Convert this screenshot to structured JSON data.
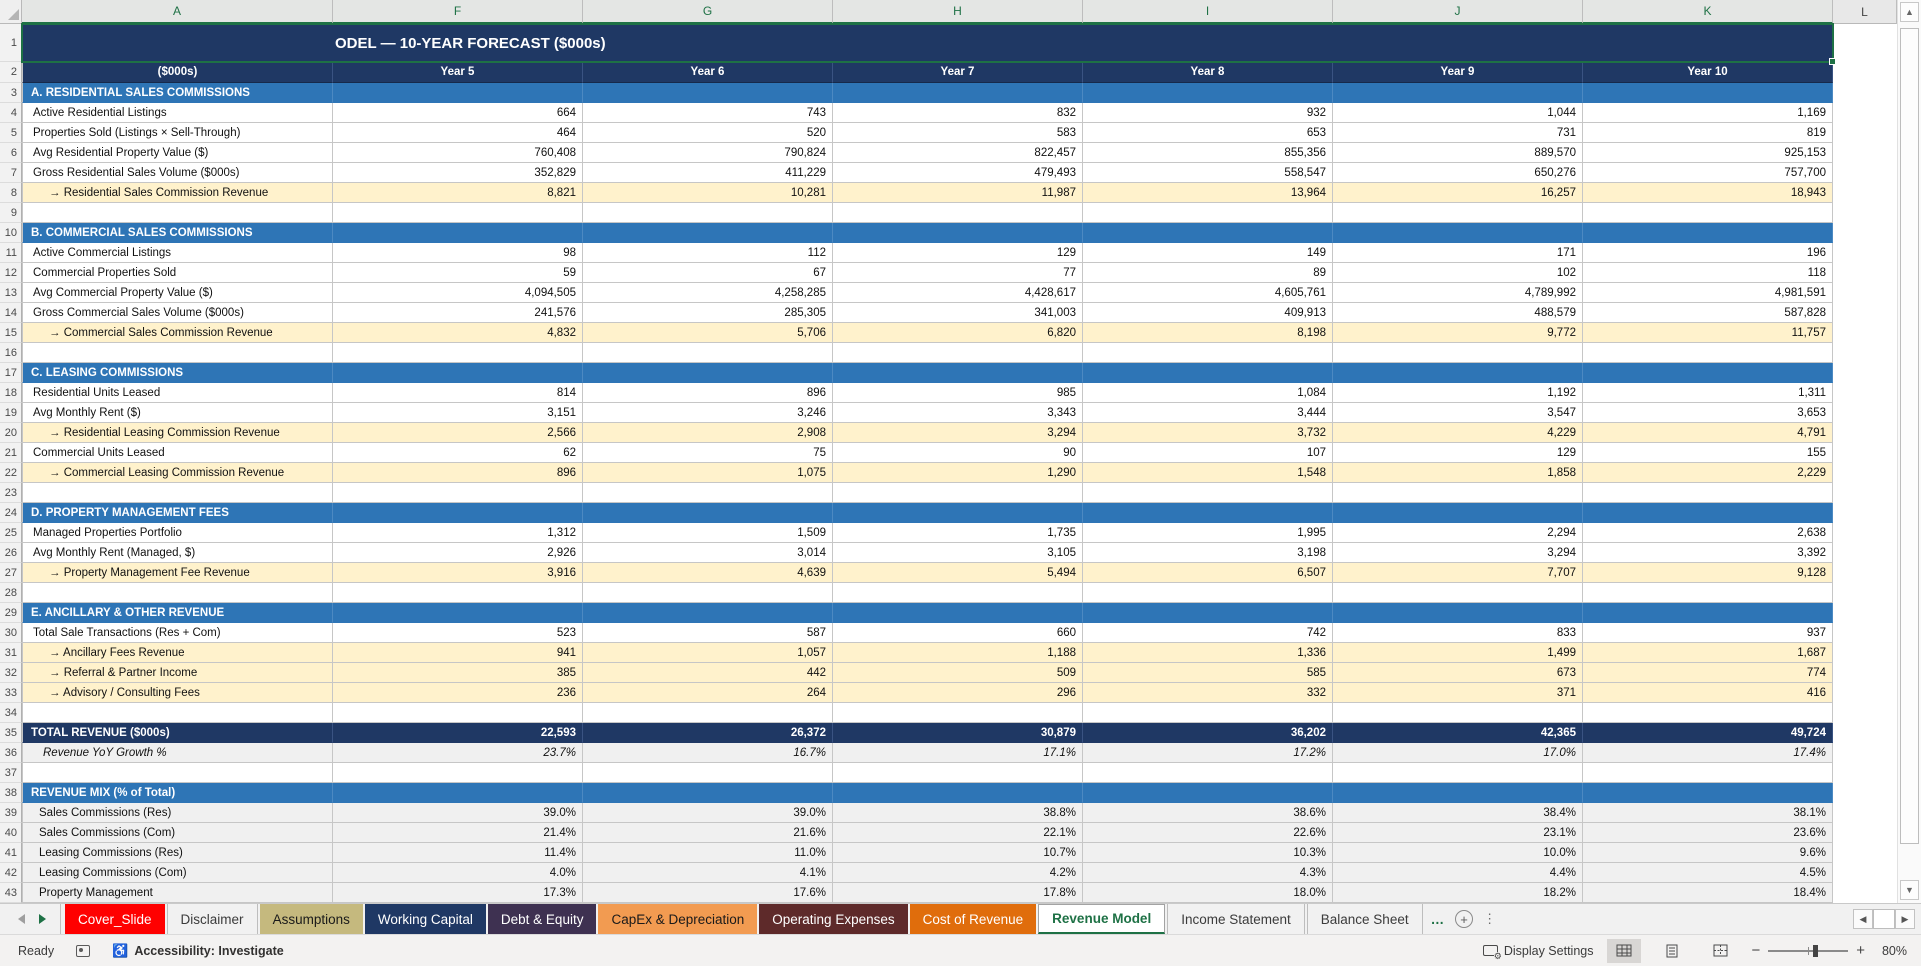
{
  "grid": {
    "column_letters": [
      {
        "letter": "A",
        "selected": true
      },
      {
        "letter": "F",
        "selected": true
      },
      {
        "letter": "G",
        "selected": true
      },
      {
        "letter": "H",
        "selected": true
      },
      {
        "letter": "I",
        "selected": true
      },
      {
        "letter": "J",
        "selected": true
      },
      {
        "letter": "K",
        "selected": true
      },
      {
        "letter": "L",
        "selected": false
      }
    ],
    "row1": {
      "number": "1",
      "title": "ODEL — 10-YEAR FORECAST ($000s)"
    },
    "row2": {
      "number": "2",
      "label": "($000s)",
      "years": [
        "Year 5",
        "Year 6",
        "Year 7",
        "Year 8",
        "Year 9",
        "Year 10"
      ]
    },
    "rows": [
      {
        "n": "3",
        "type": "section",
        "label": "A. RESIDENTIAL SALES COMMISSIONS",
        "values": [
          "",
          "",
          "",
          "",
          "",
          ""
        ]
      },
      {
        "n": "4",
        "type": "data",
        "label": "Active Residential Listings",
        "values": [
          "664",
          "743",
          "832",
          "932",
          "1,044",
          "1,169"
        ]
      },
      {
        "n": "5",
        "type": "data",
        "label": "Properties Sold (Listings × Sell-Through)",
        "values": [
          "464",
          "520",
          "583",
          "653",
          "731",
          "819"
        ]
      },
      {
        "n": "6",
        "type": "data",
        "label": "Avg Residential Property Value ($)",
        "values": [
          "760,408",
          "790,824",
          "822,457",
          "855,356",
          "889,570",
          "925,153"
        ]
      },
      {
        "n": "7",
        "type": "data",
        "label": "Gross Residential Sales Volume ($000s)",
        "values": [
          "352,829",
          "411,229",
          "479,493",
          "558,547",
          "650,276",
          "757,700"
        ]
      },
      {
        "n": "8",
        "type": "calc",
        "label": "→ Residential Sales Commission Revenue",
        "values": [
          "8,821",
          "10,281",
          "11,987",
          "13,964",
          "16,257",
          "18,943"
        ]
      },
      {
        "n": "9",
        "type": "data",
        "label": "",
        "values": [
          "",
          "",
          "",
          "",
          "",
          ""
        ]
      },
      {
        "n": "10",
        "type": "section",
        "label": "B. COMMERCIAL SALES COMMISSIONS",
        "values": [
          "",
          "",
          "",
          "",
          "",
          ""
        ]
      },
      {
        "n": "11",
        "type": "data",
        "label": "Active Commercial Listings",
        "values": [
          "98",
          "112",
          "129",
          "149",
          "171",
          "196"
        ]
      },
      {
        "n": "12",
        "type": "data",
        "label": "Commercial Properties Sold",
        "values": [
          "59",
          "67",
          "77",
          "89",
          "102",
          "118"
        ]
      },
      {
        "n": "13",
        "type": "data",
        "label": "Avg Commercial Property Value ($)",
        "values": [
          "4,094,505",
          "4,258,285",
          "4,428,617",
          "4,605,761",
          "4,789,992",
          "4,981,591"
        ]
      },
      {
        "n": "14",
        "type": "data",
        "label": "Gross Commercial Sales Volume ($000s)",
        "values": [
          "241,576",
          "285,305",
          "341,003",
          "409,913",
          "488,579",
          "587,828"
        ]
      },
      {
        "n": "15",
        "type": "calc",
        "label": "→ Commercial Sales Commission Revenue",
        "values": [
          "4,832",
          "5,706",
          "6,820",
          "8,198",
          "9,772",
          "11,757"
        ]
      },
      {
        "n": "16",
        "type": "data",
        "label": "",
        "values": [
          "",
          "",
          "",
          "",
          "",
          ""
        ]
      },
      {
        "n": "17",
        "type": "section",
        "label": "C. LEASING COMMISSIONS",
        "values": [
          "",
          "",
          "",
          "",
          "",
          ""
        ]
      },
      {
        "n": "18",
        "type": "data",
        "label": "Residential Units Leased",
        "values": [
          "814",
          "896",
          "985",
          "1,084",
          "1,192",
          "1,311"
        ]
      },
      {
        "n": "19",
        "type": "data",
        "label": "Avg Monthly Rent ($)",
        "values": [
          "3,151",
          "3,246",
          "3,343",
          "3,444",
          "3,547",
          "3,653"
        ]
      },
      {
        "n": "20",
        "type": "calc",
        "label": "→ Residential Leasing Commission Revenue",
        "values": [
          "2,566",
          "2,908",
          "3,294",
          "3,732",
          "4,229",
          "4,791"
        ]
      },
      {
        "n": "21",
        "type": "data",
        "label": "Commercial Units Leased",
        "values": [
          "62",
          "75",
          "90",
          "107",
          "129",
          "155"
        ]
      },
      {
        "n": "22",
        "type": "calc",
        "label": "→ Commercial Leasing Commission Revenue",
        "values": [
          "896",
          "1,075",
          "1,290",
          "1,548",
          "1,858",
          "2,229"
        ]
      },
      {
        "n": "23",
        "type": "data",
        "label": "",
        "values": [
          "",
          "",
          "",
          "",
          "",
          ""
        ]
      },
      {
        "n": "24",
        "type": "section",
        "label": "D. PROPERTY MANAGEMENT FEES",
        "values": [
          "",
          "",
          "",
          "",
          "",
          ""
        ]
      },
      {
        "n": "25",
        "type": "data",
        "label": "Managed Properties Portfolio",
        "values": [
          "1,312",
          "1,509",
          "1,735",
          "1,995",
          "2,294",
          "2,638"
        ]
      },
      {
        "n": "26",
        "type": "data",
        "label": "Avg Monthly Rent (Managed, $)",
        "values": [
          "2,926",
          "3,014",
          "3,105",
          "3,198",
          "3,294",
          "3,392"
        ]
      },
      {
        "n": "27",
        "type": "calc",
        "label": "→ Property Management Fee Revenue",
        "values": [
          "3,916",
          "4,639",
          "5,494",
          "6,507",
          "7,707",
          "9,128"
        ]
      },
      {
        "n": "28",
        "type": "data",
        "label": "",
        "values": [
          "",
          "",
          "",
          "",
          "",
          ""
        ]
      },
      {
        "n": "29",
        "type": "section",
        "label": "E. ANCILLARY & OTHER REVENUE",
        "values": [
          "",
          "",
          "",
          "",
          "",
          ""
        ]
      },
      {
        "n": "30",
        "type": "data",
        "label": "Total Sale Transactions (Res + Com)",
        "values": [
          "523",
          "587",
          "660",
          "742",
          "833",
          "937"
        ]
      },
      {
        "n": "31",
        "type": "calc",
        "label": "→ Ancillary Fees Revenue",
        "values": [
          "941",
          "1,057",
          "1,188",
          "1,336",
          "1,499",
          "1,687"
        ]
      },
      {
        "n": "32",
        "type": "calc",
        "label": "→ Referral & Partner Income",
        "values": [
          "385",
          "442",
          "509",
          "585",
          "673",
          "774"
        ]
      },
      {
        "n": "33",
        "type": "calc",
        "label": "→ Advisory / Consulting Fees",
        "values": [
          "236",
          "264",
          "296",
          "332",
          "371",
          "416"
        ]
      },
      {
        "n": "34",
        "type": "data",
        "label": "",
        "values": [
          "",
          "",
          "",
          "",
          "",
          ""
        ]
      },
      {
        "n": "35",
        "type": "total",
        "label": "TOTAL REVENUE ($000s)",
        "values": [
          "22,593",
          "26,372",
          "30,879",
          "36,202",
          "42,365",
          "49,724"
        ]
      },
      {
        "n": "36",
        "type": "growth",
        "label": "Revenue YoY Growth %",
        "values": [
          "23.7%",
          "16.7%",
          "17.1%",
          "17.2%",
          "17.0%",
          "17.4%"
        ]
      },
      {
        "n": "37",
        "type": "data",
        "label": "",
        "values": [
          "",
          "",
          "",
          "",
          "",
          ""
        ]
      },
      {
        "n": "38",
        "type": "section",
        "label": "REVENUE MIX (% of Total)",
        "values": [
          "",
          "",
          "",
          "",
          "",
          ""
        ]
      },
      {
        "n": "39",
        "type": "pct",
        "label": "Sales Commissions (Res)",
        "values": [
          "39.0%",
          "39.0%",
          "38.8%",
          "38.6%",
          "38.4%",
          "38.1%"
        ]
      },
      {
        "n": "40",
        "type": "pct",
        "label": "Sales Commissions (Com)",
        "values": [
          "21.4%",
          "21.6%",
          "22.1%",
          "22.6%",
          "23.1%",
          "23.6%"
        ]
      },
      {
        "n": "41",
        "type": "pct",
        "label": "Leasing Commissions (Res)",
        "values": [
          "11.4%",
          "11.0%",
          "10.7%",
          "10.3%",
          "10.0%",
          "9.6%"
        ]
      },
      {
        "n": "42",
        "type": "pct",
        "label": "Leasing Commissions (Com)",
        "values": [
          "4.0%",
          "4.1%",
          "4.2%",
          "4.3%",
          "4.4%",
          "4.5%"
        ]
      },
      {
        "n": "43",
        "type": "pct",
        "label": "Property Management",
        "values": [
          "17.3%",
          "17.6%",
          "17.8%",
          "18.0%",
          "18.2%",
          "18.4%"
        ]
      }
    ]
  },
  "colors": {
    "title_fill": "#1F3864",
    "section_fill": "#2E75B6",
    "highlight_fill": "#FFF2CC",
    "pct_fill": "#F0F0F0",
    "excel_green": "#1E7145"
  },
  "sheet_tabs": {
    "items": [
      {
        "label": "Cover_Slide",
        "bg": "#FF0000",
        "fg": "#FFFFFF",
        "style": "solid"
      },
      {
        "label": "Disclaimer",
        "bg": "",
        "fg": "#3b3b3b",
        "style": "light"
      },
      {
        "label": "Assumptions",
        "bg": "#C5B97E",
        "fg": "#1a1a1a",
        "style": "solid"
      },
      {
        "label": "Working Capital",
        "bg": "#1F3864",
        "fg": "#FFFFFF",
        "style": "solid"
      },
      {
        "label": "Debt & Equity",
        "bg": "#3E3151",
        "fg": "#FFFFFF",
        "style": "solid"
      },
      {
        "label": "CapEx & Depreciation",
        "bg": "#F29B51",
        "fg": "#1a1a1a",
        "style": "solid"
      },
      {
        "label": "Operating Expenses",
        "bg": "#5E2A2A",
        "fg": "#FFFFFF",
        "style": "solid"
      },
      {
        "label": "Cost of Revenue",
        "bg": "#E06D0C",
        "fg": "#FFFFFF",
        "style": "solid"
      },
      {
        "label": "Revenue Model",
        "bg": "#FFFFFF",
        "fg": "#1E7145",
        "style": "active"
      },
      {
        "label": "Income Statement",
        "bg": "",
        "fg": "#3b3b3b",
        "style": "light"
      },
      {
        "label": "Balance Sheet",
        "bg": "",
        "fg": "#3b3b3b",
        "style": "light"
      }
    ],
    "more_indicator": "…"
  },
  "status_bar": {
    "ready": "Ready",
    "accessibility": "Accessibility: Investigate",
    "display_settings": "Display Settings",
    "zoom_level": "80%"
  }
}
